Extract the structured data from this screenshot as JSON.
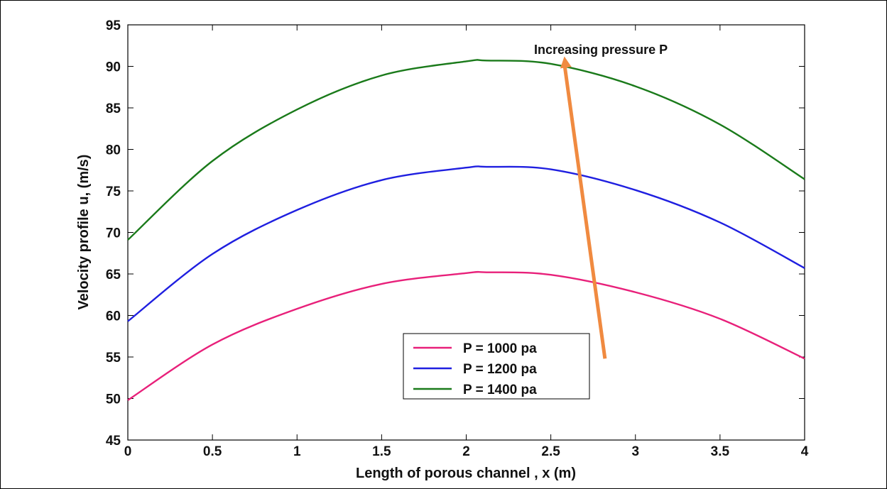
{
  "chart_data": {
    "type": "line",
    "xlabel": "Length of porous channel , x (m)",
    "ylabel": "Velocity profile u,  (m/s)",
    "xlim": [
      0,
      4
    ],
    "ylim": [
      45,
      95
    ],
    "xticks": [
      0,
      0.5,
      1,
      1.5,
      2,
      2.5,
      3,
      3.5,
      4
    ],
    "xtick_labels": [
      "0",
      "0.5",
      "1",
      "1.5",
      "2",
      "2.5",
      "3",
      "3.5",
      "4"
    ],
    "yticks": [
      45,
      50,
      55,
      60,
      65,
      70,
      75,
      80,
      85,
      90,
      95
    ],
    "ytick_labels": [
      "45",
      "50",
      "55",
      "60",
      "65",
      "70",
      "75",
      "80",
      "85",
      "90",
      "95"
    ],
    "grid": false,
    "legend_position": "lower-center",
    "series": [
      {
        "name": "P = 1000 pa",
        "color": "#e8207a",
        "x": [
          0,
          0.5,
          1,
          1.5,
          2,
          2.12,
          2.5,
          3,
          3.5,
          4
        ],
        "y": [
          49.8,
          56.5,
          60.8,
          63.8,
          65.1,
          65.2,
          64.9,
          62.8,
          59.6,
          54.8
        ]
      },
      {
        "name": "P = 1200 pa",
        "color": "#1f1fe0",
        "x": [
          0,
          0.5,
          1,
          1.5,
          2,
          2.12,
          2.5,
          3,
          3.5,
          4
        ],
        "y": [
          59.3,
          67.4,
          72.7,
          76.3,
          77.8,
          77.9,
          77.6,
          75.1,
          71.2,
          65.7
        ]
      },
      {
        "name": "P = 1400 pa",
        "color": "#1a7a1a",
        "x": [
          0,
          0.5,
          1,
          1.5,
          2,
          2.12,
          2.5,
          3,
          3.5,
          4
        ],
        "y": [
          69.1,
          78.6,
          84.8,
          88.9,
          90.6,
          90.7,
          90.3,
          87.6,
          83.0,
          76.4
        ]
      }
    ],
    "annotation": {
      "text": "Increasing pressure  P",
      "arrow_color": "#f08a40",
      "arrow_from": [
        2.82,
        54.8
      ],
      "arrow_to": [
        2.58,
        91.2
      ]
    }
  }
}
